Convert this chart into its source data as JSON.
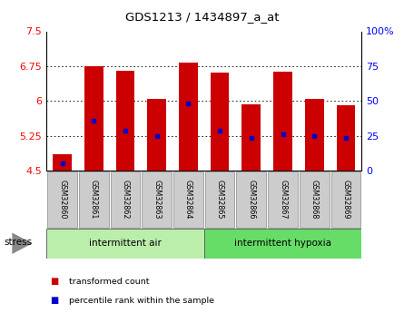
{
  "title": "GDS1213 / 1434897_a_at",
  "samples": [
    "GSM32860",
    "GSM32861",
    "GSM32862",
    "GSM32863",
    "GSM32864",
    "GSM32865",
    "GSM32866",
    "GSM32867",
    "GSM32868",
    "GSM32869"
  ],
  "red_bar_heights": [
    4.85,
    6.75,
    6.65,
    6.05,
    6.82,
    6.62,
    5.92,
    6.63,
    6.05,
    5.9
  ],
  "blue_marker_pos": [
    4.65,
    5.58,
    5.37,
    5.25,
    5.95,
    5.37,
    5.2,
    5.28,
    5.25,
    5.2
  ],
  "y_min": 4.5,
  "y_max": 7.5,
  "y_ticks": [
    4.5,
    5.25,
    6.0,
    6.75,
    7.5
  ],
  "y_tick_labels": [
    "4.5",
    "5.25",
    "6",
    "6.75",
    "7.5"
  ],
  "right_y_ticks": [
    0,
    25,
    50,
    75,
    100
  ],
  "right_y_tick_labels": [
    "0",
    "25",
    "50",
    "75",
    "100%"
  ],
  "group1_label": "intermittent air",
  "group2_label": "intermittent hypoxia",
  "stress_label": "stress",
  "bar_color": "#cc0000",
  "marker_color": "#0000cc",
  "group1_color": "#bbeeaa",
  "group2_color": "#66dd66",
  "tick_bg_color": "#cccccc",
  "bar_width": 0.6,
  "red_legend": "transformed count",
  "blue_legend": "percentile rank within the sample",
  "n_group1": 5,
  "n_group2": 5
}
